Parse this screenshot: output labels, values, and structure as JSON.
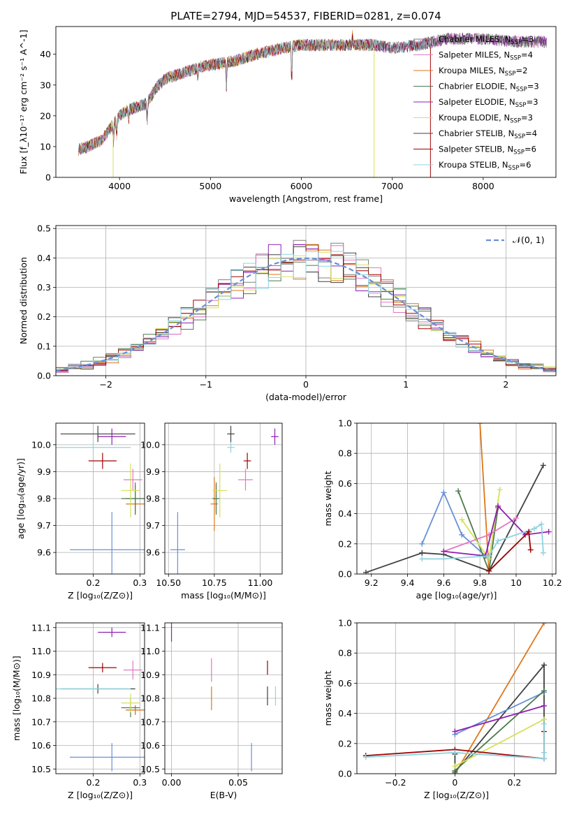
{
  "figure_title": "PLATE=2794, MJD=54537, FIBERID=0281, z=0.074",
  "colors": {
    "Chabrier MILES": "#7f7f7f",
    "Salpeter MILES": "#e377c2",
    "Kroupa MILES": "#e0761a",
    "Chabrier ELODIE": "#4d7a4d",
    "Salpeter ELODIE": "#8e1fb0",
    "Kroupa ELODIE": "#d6e05a",
    "Chabrier STELIB": "#404040",
    "Salpeter STELIB": "#a00000",
    "Kroupa STELIB": "#8fd3e0",
    "gauss": "#6a8fd8"
  },
  "chart_data": [
    {
      "id": "spectrum",
      "type": "line",
      "xlabel": "wavelength [Angstrom, rest frame]",
      "ylabel": "Flux [f_λ10^-17 erg cm^-2 s^-1 A^-1]",
      "xlim": [
        3300,
        8800
      ],
      "ylim": [
        0,
        49
      ],
      "xticks": [
        4000,
        5000,
        6000,
        7000,
        8000
      ],
      "yticks": [
        0,
        10,
        20,
        30,
        40
      ],
      "continuum": [
        [
          3550,
          9
        ],
        [
          3650,
          10
        ],
        [
          3800,
          12
        ],
        [
          3900,
          16
        ],
        [
          4000,
          20
        ],
        [
          4100,
          22
        ],
        [
          4200,
          23
        ],
        [
          4300,
          24
        ],
        [
          4400,
          29
        ],
        [
          4500,
          32
        ],
        [
          4700,
          34
        ],
        [
          4900,
          36
        ],
        [
          5100,
          37
        ],
        [
          5300,
          38
        ],
        [
          5500,
          40
        ],
        [
          5800,
          42
        ],
        [
          6000,
          43
        ],
        [
          6300,
          43
        ],
        [
          6500,
          43
        ],
        [
          6800,
          43
        ],
        [
          7000,
          42
        ],
        [
          7300,
          43
        ],
        [
          7600,
          45
        ],
        [
          8000,
          45
        ],
        [
          8400,
          44
        ],
        [
          8800,
          44
        ]
      ],
      "absorption_lines": [
        [
          3934,
          6
        ],
        [
          3969,
          5
        ],
        [
          4102,
          3
        ],
        [
          4304,
          6
        ],
        [
          4861,
          3
        ],
        [
          5175,
          8
        ],
        [
          5893,
          12
        ],
        [
          6563,
          -3
        ]
      ],
      "legend": [
        {
          "label": "Chabrier MILES, N_SSP=3"
        },
        {
          "label": "Salpeter MILES, N_SSP=4"
        },
        {
          "label": "Kroupa MILES, N_SSP=2"
        },
        {
          "label": "Chabrier ELODIE, N_SSP=3"
        },
        {
          "label": "Salpeter ELODIE, N_SSP=3"
        },
        {
          "label": "Kroupa ELODIE, N_SSP=3"
        },
        {
          "label": "Chabrier STELIB, N_SSP=4"
        },
        {
          "label": "Salpeter STELIB, N_SSP=6"
        },
        {
          "label": "Kroupa STELIB, N_SSP=6"
        }
      ]
    },
    {
      "id": "residuals",
      "type": "line",
      "xlabel": "(data-model)/error",
      "ylabel": "Normed distribution",
      "xlim": [
        -2.5,
        2.5
      ],
      "ylim": [
        0,
        0.51
      ],
      "xticks": [
        -2,
        -1,
        0,
        1,
        2
      ],
      "yticks": [
        0.0,
        0.1,
        0.2,
        0.3,
        0.4,
        0.5
      ],
      "gauss_label": "𝒩(0, 1)"
    },
    {
      "id": "age-vs-Z",
      "type": "scatter",
      "xlabel": "Z [log10(Z/Z⊙)]",
      "ylabel": "age [log10(age/yr)]",
      "xlim": [
        0.12,
        0.31
      ],
      "ylim": [
        9.52,
        10.08
      ],
      "xticks": [
        0.2,
        0.3
      ],
      "yticks": [
        9.6,
        9.7,
        9.8,
        9.9,
        10.0
      ],
      "points": [
        {
          "s": "Chabrier MILES",
          "x": 0.29,
          "y": 9.8,
          "xerr": 0.02,
          "yerr": 0.05
        },
        {
          "s": "Salpeter MILES",
          "x": 0.285,
          "y": 9.87,
          "xerr": 0.02,
          "yerr": 0.04
        },
        {
          "s": "Kroupa MILES",
          "x": 0.29,
          "y": 9.78,
          "xerr": 0.02,
          "yerr": 0.04
        },
        {
          "s": "Chabrier ELODIE",
          "x": 0.29,
          "y": 9.8,
          "xerr": 0.03,
          "yerr": 0.06
        },
        {
          "s": "Salpeter ELODIE",
          "x": 0.24,
          "y": 10.03,
          "xerr": 0.03,
          "yerr": 0.03
        },
        {
          "s": "Kroupa ELODIE",
          "x": 0.28,
          "y": 9.83,
          "xerr": 0.02,
          "yerr": 0.1
        },
        {
          "s": "Chabrier STELIB",
          "x": 0.21,
          "y": 10.04,
          "xerr": 0.08,
          "yerr": 0.03
        },
        {
          "s": "Salpeter STELIB",
          "x": 0.22,
          "y": 9.94,
          "xerr": 0.03,
          "yerr": 0.03
        },
        {
          "s": "Kroupa STELIB",
          "x": 0.2,
          "y": 9.99,
          "xerr": 0.08,
          "yerr": 0.02
        },
        {
          "s": "gauss",
          "x": 0.24,
          "y": 9.61,
          "xerr": 0.09,
          "yerr": 0.14
        }
      ]
    },
    {
      "id": "age-vs-mass",
      "type": "scatter",
      "xlabel": "mass [log10(M/M⊙)]",
      "xlim": [
        10.48,
        11.12
      ],
      "ylim": [
        9.52,
        10.08
      ],
      "xticks": [
        10.5,
        10.75,
        11.0
      ],
      "xticklabels": [
        "10.50",
        "10.75",
        "11.00"
      ],
      "yticks": [
        9.6,
        9.7,
        9.8,
        9.9,
        10.0
      ],
      "points": [
        {
          "s": "Chabrier MILES",
          "x": 10.76,
          "y": 9.8,
          "xerr": 0.02,
          "yerr": 0.05
        },
        {
          "s": "Salpeter MILES",
          "x": 10.92,
          "y": 9.87,
          "xerr": 0.04,
          "yerr": 0.04
        },
        {
          "s": "Kroupa MILES",
          "x": 10.75,
          "y": 9.78,
          "xerr": 0.02,
          "yerr": 0.1
        },
        {
          "s": "Chabrier ELODIE",
          "x": 10.76,
          "y": 9.8,
          "xerr": 0.02,
          "yerr": 0.06
        },
        {
          "s": "Salpeter ELODIE",
          "x": 11.08,
          "y": 10.03,
          "xerr": 0.02,
          "yerr": 0.03
        },
        {
          "s": "Kroupa ELODIE",
          "x": 10.78,
          "y": 9.83,
          "xerr": 0.04,
          "yerr": 0.1
        },
        {
          "s": "Chabrier STELIB",
          "x": 10.84,
          "y": 10.04,
          "xerr": 0.02,
          "yerr": 0.03
        },
        {
          "s": "Salpeter STELIB",
          "x": 10.93,
          "y": 9.94,
          "xerr": 0.02,
          "yerr": 0.03
        },
        {
          "s": "Kroupa STELIB",
          "x": 10.84,
          "y": 9.99,
          "xerr": 0.02,
          "yerr": 0.02
        },
        {
          "s": "gauss",
          "x": 10.55,
          "y": 9.61,
          "xerr": 0.04,
          "yerr": 0.14
        }
      ]
    },
    {
      "id": "weight-vs-age",
      "type": "line",
      "xlabel": "age [log10(age/yr)]",
      "ylabel": "mass weight",
      "xlim": [
        9.12,
        10.22
      ],
      "ylim": [
        0,
        1.0
      ],
      "xticks": [
        9.2,
        9.4,
        9.6,
        9.8,
        10.0,
        10.2
      ],
      "yticks": [
        0.0,
        0.2,
        0.4,
        0.6,
        0.8,
        1.0
      ],
      "series": [
        {
          "s": "Chabrier STELIB",
          "x": [
            9.17,
            9.48,
            9.6,
            9.85,
            10.15
          ],
          "y": [
            0.01,
            0.14,
            0.13,
            0.02,
            0.72
          ]
        },
        {
          "s": "gauss",
          "x": [
            9.48,
            9.6,
            9.7,
            9.85
          ],
          "y": [
            0.2,
            0.54,
            0.26,
            0.1
          ]
        },
        {
          "s": "Kroupa MILES",
          "x": [
            9.8,
            9.85
          ],
          "y": [
            1.0,
            0.02
          ]
        },
        {
          "s": "Chabrier ELODIE",
          "x": [
            9.68,
            9.85,
            9.9
          ],
          "y": [
            0.55,
            0.02,
            0.44
          ]
        },
        {
          "s": "Kroupa ELODIE",
          "x": [
            9.7,
            9.85,
            9.91
          ],
          "y": [
            0.36,
            0.1,
            0.56
          ]
        },
        {
          "s": "Salpeter MILES",
          "x": [
            9.6,
            9.85,
            10.0
          ],
          "y": [
            0.15,
            0.26,
            0.37
          ]
        },
        {
          "s": "Salpeter ELODIE",
          "x": [
            9.6,
            9.83,
            9.9,
            10.05,
            10.18
          ],
          "y": [
            0.15,
            0.12,
            0.45,
            0.26,
            0.28
          ]
        },
        {
          "s": "Kroupa STELIB",
          "x": [
            9.48,
            9.6,
            9.85,
            9.9,
            10.1,
            10.14,
            10.15
          ],
          "y": [
            0.1,
            0.1,
            0.12,
            0.22,
            0.3,
            0.33,
            0.14
          ]
        },
        {
          "s": "Salpeter STELIB",
          "x": [
            9.85,
            10.07,
            10.08
          ],
          "y": [
            0.02,
            0.28,
            0.16
          ]
        }
      ]
    },
    {
      "id": "mass-vs-Z",
      "type": "scatter",
      "xlabel": "Z [log10(Z/Z⊙)]",
      "ylabel": "mass [log10(M/M⊙)]",
      "xlim": [
        0.12,
        0.31
      ],
      "ylim": [
        10.48,
        11.12
      ],
      "xticks": [
        0.2,
        0.3
      ],
      "yticks": [
        10.5,
        10.6,
        10.7,
        10.8,
        10.9,
        11.0,
        11.1
      ],
      "points": [
        {
          "s": "Chabrier MILES",
          "x": 0.29,
          "y": 10.75,
          "xerr": 0.02,
          "yerr": 0.02
        },
        {
          "s": "Salpeter MILES",
          "x": 0.285,
          "y": 10.92,
          "xerr": 0.02,
          "yerr": 0.04
        },
        {
          "s": "Kroupa MILES",
          "x": 0.29,
          "y": 10.75,
          "xerr": 0.02,
          "yerr": 0.02
        },
        {
          "s": "Chabrier ELODIE",
          "x": 0.28,
          "y": 10.76,
          "xerr": 0.02,
          "yerr": 0.04
        },
        {
          "s": "Salpeter ELODIE",
          "x": 0.24,
          "y": 11.08,
          "xerr": 0.03,
          "yerr": 0.02
        },
        {
          "s": "Kroupa ELODIE",
          "x": 0.28,
          "y": 10.78,
          "xerr": 0.02,
          "yerr": 0.04
        },
        {
          "s": "Chabrier STELIB",
          "x": 0.21,
          "y": 10.84,
          "xerr": 0.08,
          "yerr": 0.02
        },
        {
          "s": "Salpeter STELIB",
          "x": 0.22,
          "y": 10.93,
          "xerr": 0.03,
          "yerr": 0.02
        },
        {
          "s": "Kroupa STELIB",
          "x": 0.2,
          "y": 10.84,
          "xerr": 0.08,
          "yerr": 0.02
        },
        {
          "s": "gauss",
          "x": 0.24,
          "y": 10.55,
          "xerr": 0.09,
          "yerr": 0.06
        }
      ]
    },
    {
      "id": "mass-vs-ebv",
      "type": "scatter",
      "xlabel": "E(B-V)",
      "xlim": [
        -0.005,
        0.083
      ],
      "ylim": [
        10.48,
        11.12
      ],
      "xticks": [
        0.0,
        0.05
      ],
      "xticklabels": [
        "0.00",
        "0.05"
      ],
      "yticks": [
        10.5,
        10.6,
        10.7,
        10.8,
        10.9,
        11.0,
        11.1
      ],
      "points": [
        {
          "s": "Salpeter ELODIE",
          "x": 0.0,
          "y": 11.08,
          "xerr": 0,
          "yerr": 0.04
        },
        {
          "s": "Kroupa ELODIE",
          "x": 0.0,
          "y": 10.78,
          "xerr": 0,
          "yerr": 0.06
        },
        {
          "s": "Salpeter MILES",
          "x": 0.03,
          "y": 10.92,
          "xerr": 0,
          "yerr": 0.05
        },
        {
          "s": "Kroupa MILES",
          "x": 0.03,
          "y": 10.8,
          "xerr": 0,
          "yerr": 0.05
        },
        {
          "s": "gauss",
          "x": 0.06,
          "y": 10.55,
          "xerr": 0,
          "yerr": 0.06
        },
        {
          "s": "Salpeter STELIB",
          "x": 0.072,
          "y": 10.93,
          "xerr": 0,
          "yerr": 0.03
        },
        {
          "s": "Chabrier STELIB",
          "x": 0.072,
          "y": 10.81,
          "xerr": 0,
          "yerr": 0.04
        },
        {
          "s": "Kroupa STELIB",
          "x": 0.078,
          "y": 10.81,
          "xerr": 0,
          "yerr": 0.04
        }
      ]
    },
    {
      "id": "weight-vs-Z",
      "type": "line",
      "xlabel": "Z [log10(Z/Z⊙)]",
      "ylabel": "mass weight",
      "xlim": [
        -0.33,
        0.34
      ],
      "ylim": [
        0,
        1.0
      ],
      "xticks": [
        -0.2,
        0.0,
        0.2
      ],
      "yticks": [
        0.0,
        0.2,
        0.4,
        0.6,
        0.8,
        1.0
      ],
      "series": [
        {
          "s": "Kroupa MILES",
          "x": [
            0.0,
            0.3
          ],
          "y": [
            0.0,
            1.0
          ]
        },
        {
          "s": "Chabrier STELIB",
          "x": [
            0.0,
            0.0,
            0.3,
            0.3
          ],
          "y": [
            0.13,
            0.01,
            0.72,
            0.14
          ]
        },
        {
          "s": "gauss",
          "x": [
            0.0,
            0.3
          ],
          "y": [
            0.26,
            0.54
          ]
        },
        {
          "s": "Chabrier ELODIE",
          "x": [
            0.0,
            0.3
          ],
          "y": [
            0.02,
            0.55
          ]
        },
        {
          "s": "Salpeter ELODIE",
          "x": [
            0.0,
            0.3
          ],
          "y": [
            0.28,
            0.45
          ]
        },
        {
          "s": "Kroupa ELODIE",
          "x": [
            0.0,
            0.3
          ],
          "y": [
            0.05,
            0.36
          ]
        },
        {
          "s": "Salpeter STELIB",
          "x": [
            -0.3,
            0.0,
            0.3,
            0.3
          ],
          "y": [
            0.12,
            0.16,
            0.1,
            0.28
          ]
        },
        {
          "s": "Kroupa STELIB",
          "x": [
            -0.3,
            0.0,
            0.3,
            0.3,
            0.3
          ],
          "y": [
            0.11,
            0.14,
            0.1,
            0.33,
            0.14
          ]
        }
      ]
    }
  ]
}
